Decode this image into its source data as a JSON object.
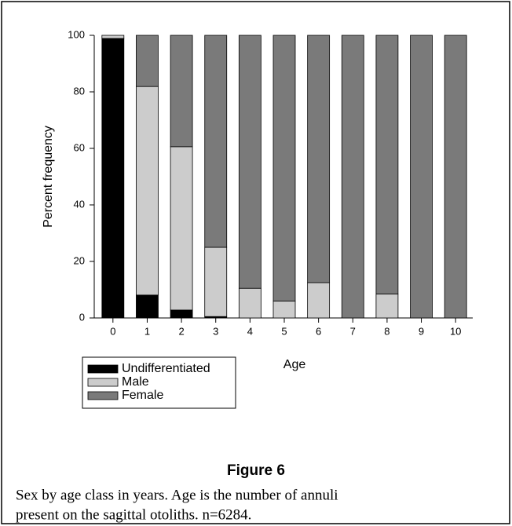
{
  "chart_data": {
    "type": "stacked_bar",
    "xlabel": "Age",
    "ylabel": "Percent frequency",
    "categories": [
      "0",
      "1",
      "2",
      "3",
      "4",
      "5",
      "6",
      "7",
      "8",
      "9",
      "10"
    ],
    "series": [
      {
        "name": "Undifferentiated",
        "color": "#000000",
        "values": [
          98.9,
          8.1,
          2.8,
          0.5,
          0,
          0,
          0,
          0,
          0,
          0,
          0
        ]
      },
      {
        "name": "Male",
        "color": "#cccccc",
        "values": [
          1.1,
          73.8,
          57.8,
          24.5,
          10.5,
          6,
          12.5,
          0,
          8.5,
          0,
          0
        ]
      },
      {
        "name": "Female",
        "color": "#7a7a7a",
        "values": [
          0,
          18.1,
          39.4,
          75,
          89.5,
          94,
          87.5,
          100,
          91.5,
          100,
          100
        ]
      }
    ],
    "ylim": [
      0,
      100
    ],
    "yticks": [
      0,
      20,
      40,
      60,
      80,
      100
    ],
    "legend": "bottom-left"
  },
  "caption": {
    "label": "Figure 6",
    "lines": [
      "Sex by age class in years. Age is the number of annuli",
      "present on the sagittal otoliths. n=6284."
    ]
  }
}
